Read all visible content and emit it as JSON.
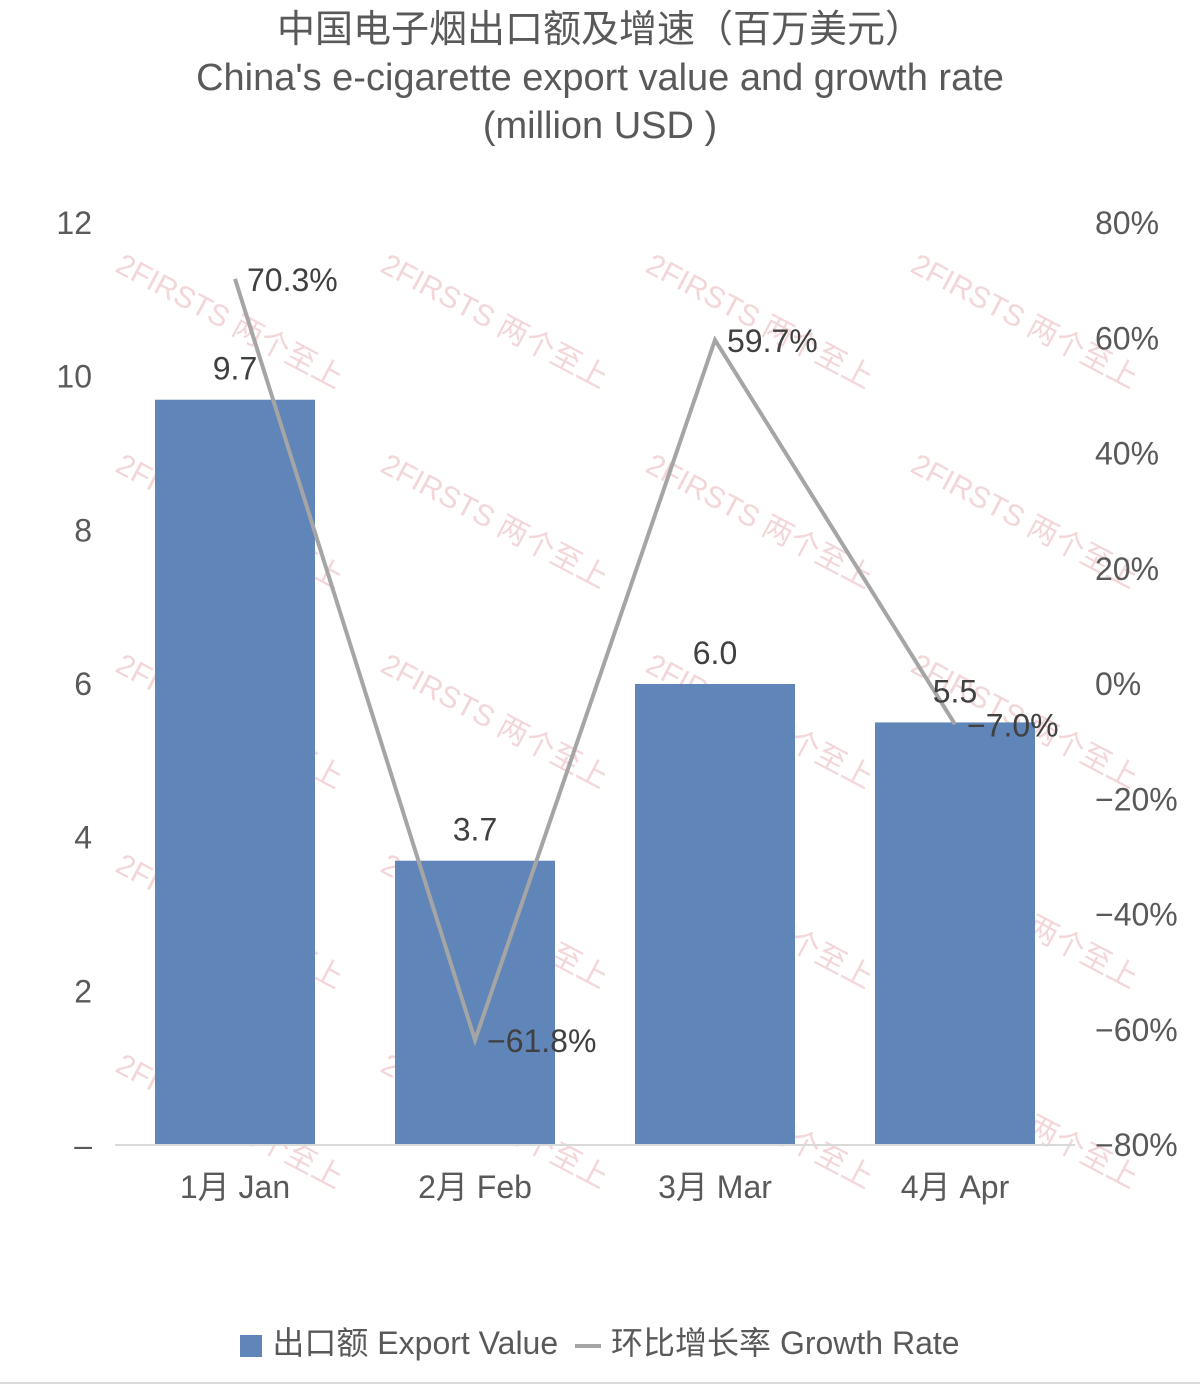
{
  "title": {
    "line1": "中国电子烟出口额及增速（百万美元）",
    "line2": "China's e-cigarette export value and growth rate",
    "line3": "(million USD )"
  },
  "chart_data": {
    "type": "bar",
    "categories": [
      "1月 Jan",
      "2月 Feb",
      "3月 Mar",
      "4月 Apr"
    ],
    "series": [
      {
        "name": "出口额 Export Value",
        "type": "bar",
        "axis": "left",
        "values": [
          9.7,
          3.7,
          6.0,
          5.5
        ],
        "labels": [
          "9.7",
          "3.7",
          "6.0",
          "5.5"
        ],
        "color": "#6085b8"
      },
      {
        "name": "环比增长率 Growth Rate",
        "type": "line",
        "axis": "right",
        "values": [
          70.3,
          -61.8,
          59.7,
          -7.0
        ],
        "labels": [
          "70.3%",
          "−61.8%",
          "59.7%",
          "−7.0%"
        ],
        "color": "#a5a5a5"
      }
    ],
    "y_left": {
      "min": 0,
      "max": 12,
      "ticks": [
        0,
        2,
        4,
        6,
        8,
        10,
        12
      ],
      "tick_labels": [
        "–",
        "2",
        "4",
        "6",
        "8",
        "10",
        "12"
      ]
    },
    "y_right": {
      "min": -80,
      "max": 80,
      "ticks": [
        -80,
        -60,
        -40,
        -20,
        0,
        20,
        40,
        60,
        80
      ],
      "tick_labels": [
        "−80%",
        "−60%",
        "−40%",
        "−20%",
        "0%",
        "20%",
        "40%",
        "60%",
        "80%"
      ]
    },
    "grid": false,
    "legend_position": "bottom",
    "watermark": "2FIRSTS 两个至上"
  },
  "legend": {
    "bar_label": "出口额 Export Value",
    "line_label": "环比增长率 Growth Rate"
  }
}
